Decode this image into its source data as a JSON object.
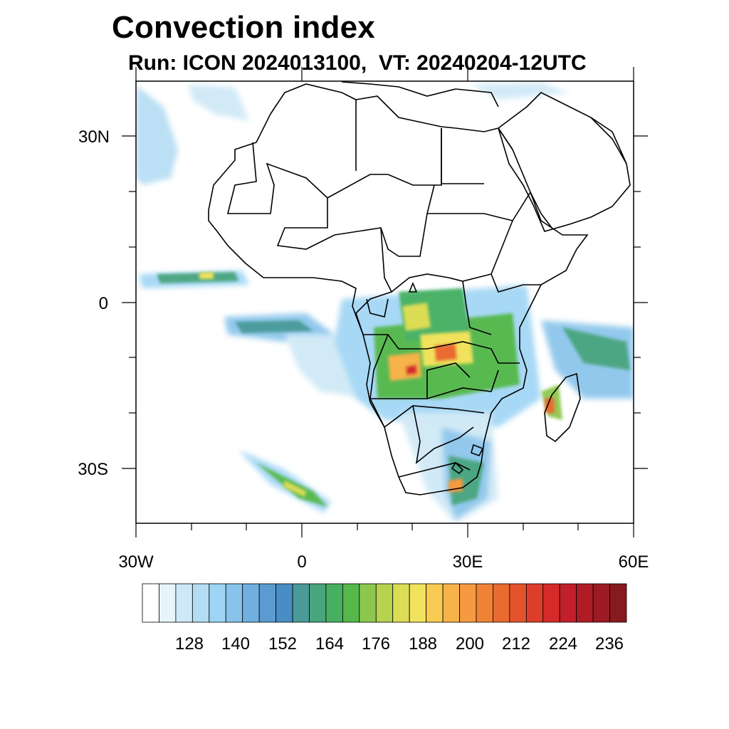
{
  "title": "Convection index",
  "subtitle": "Run: ICON 2024013100,  VT: 20240204-12UTC",
  "axes": {
    "lon_labels": [
      "30W",
      "0",
      "30E",
      "60E"
    ],
    "lat_labels": [
      "30N",
      "0",
      "30S"
    ],
    "lon_range": [
      -30,
      60
    ],
    "lat_range": [
      -40,
      40
    ]
  },
  "colorbar": {
    "tick_labels": [
      "128",
      "140",
      "152",
      "164",
      "176",
      "188",
      "200",
      "212",
      "224",
      "236"
    ],
    "colors": [
      "#ffffff",
      "#e8f4fc",
      "#cde8f6",
      "#b4dcf3",
      "#9ed4f4",
      "#87c3ea",
      "#70afe0",
      "#5b9bd2",
      "#4a8dc4",
      "#4a9a9a",
      "#48a57e",
      "#47b060",
      "#55b84a",
      "#8cc84e",
      "#b6d24f",
      "#dcdc55",
      "#f0e25c",
      "#f9cb52",
      "#f7b24a",
      "#f59a40",
      "#f08236",
      "#ea6a30",
      "#e4542c",
      "#dd3d2a",
      "#d42a2a",
      "#c21f2a",
      "#b01c26",
      "#9c1a22",
      "#861a1e"
    ],
    "levels_start": 116,
    "level_step": 4
  },
  "legend_colors": {
    "land_outline": "#000000",
    "ocean": "#ffffff"
  }
}
